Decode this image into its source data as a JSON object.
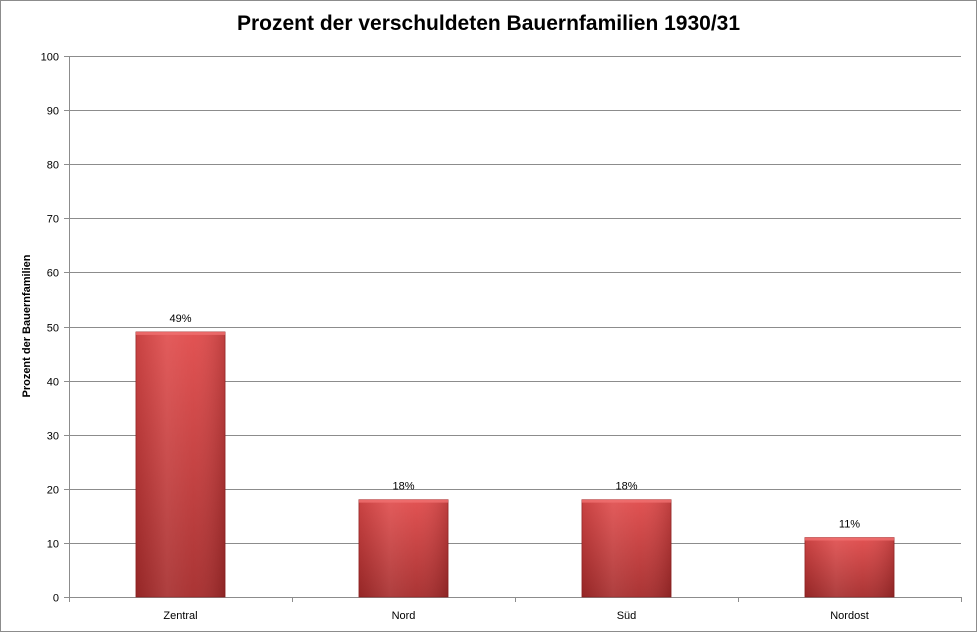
{
  "chart_data": {
    "type": "bar",
    "title": "Prozent der verschuldeten Bauernfamilien 1930/31",
    "xlabel": "",
    "ylabel": "Prozent der Bauernfamilien",
    "categories": [
      "Zentral",
      "Nord",
      "Süd",
      "Nordost"
    ],
    "values": [
      49,
      18,
      18,
      11
    ],
    "data_labels": [
      "49%",
      "18%",
      "18%",
      "11%"
    ],
    "ylim": [
      0,
      100
    ],
    "yticks": [
      0,
      10,
      20,
      30,
      40,
      50,
      60,
      70,
      80,
      90,
      100
    ],
    "grid": true,
    "legend": "none",
    "colors": {
      "bar_light": "#e04a4a",
      "bar_dark": "#a52a2a",
      "grid": "#8c8c8c",
      "axis": "#8c8c8c"
    }
  }
}
